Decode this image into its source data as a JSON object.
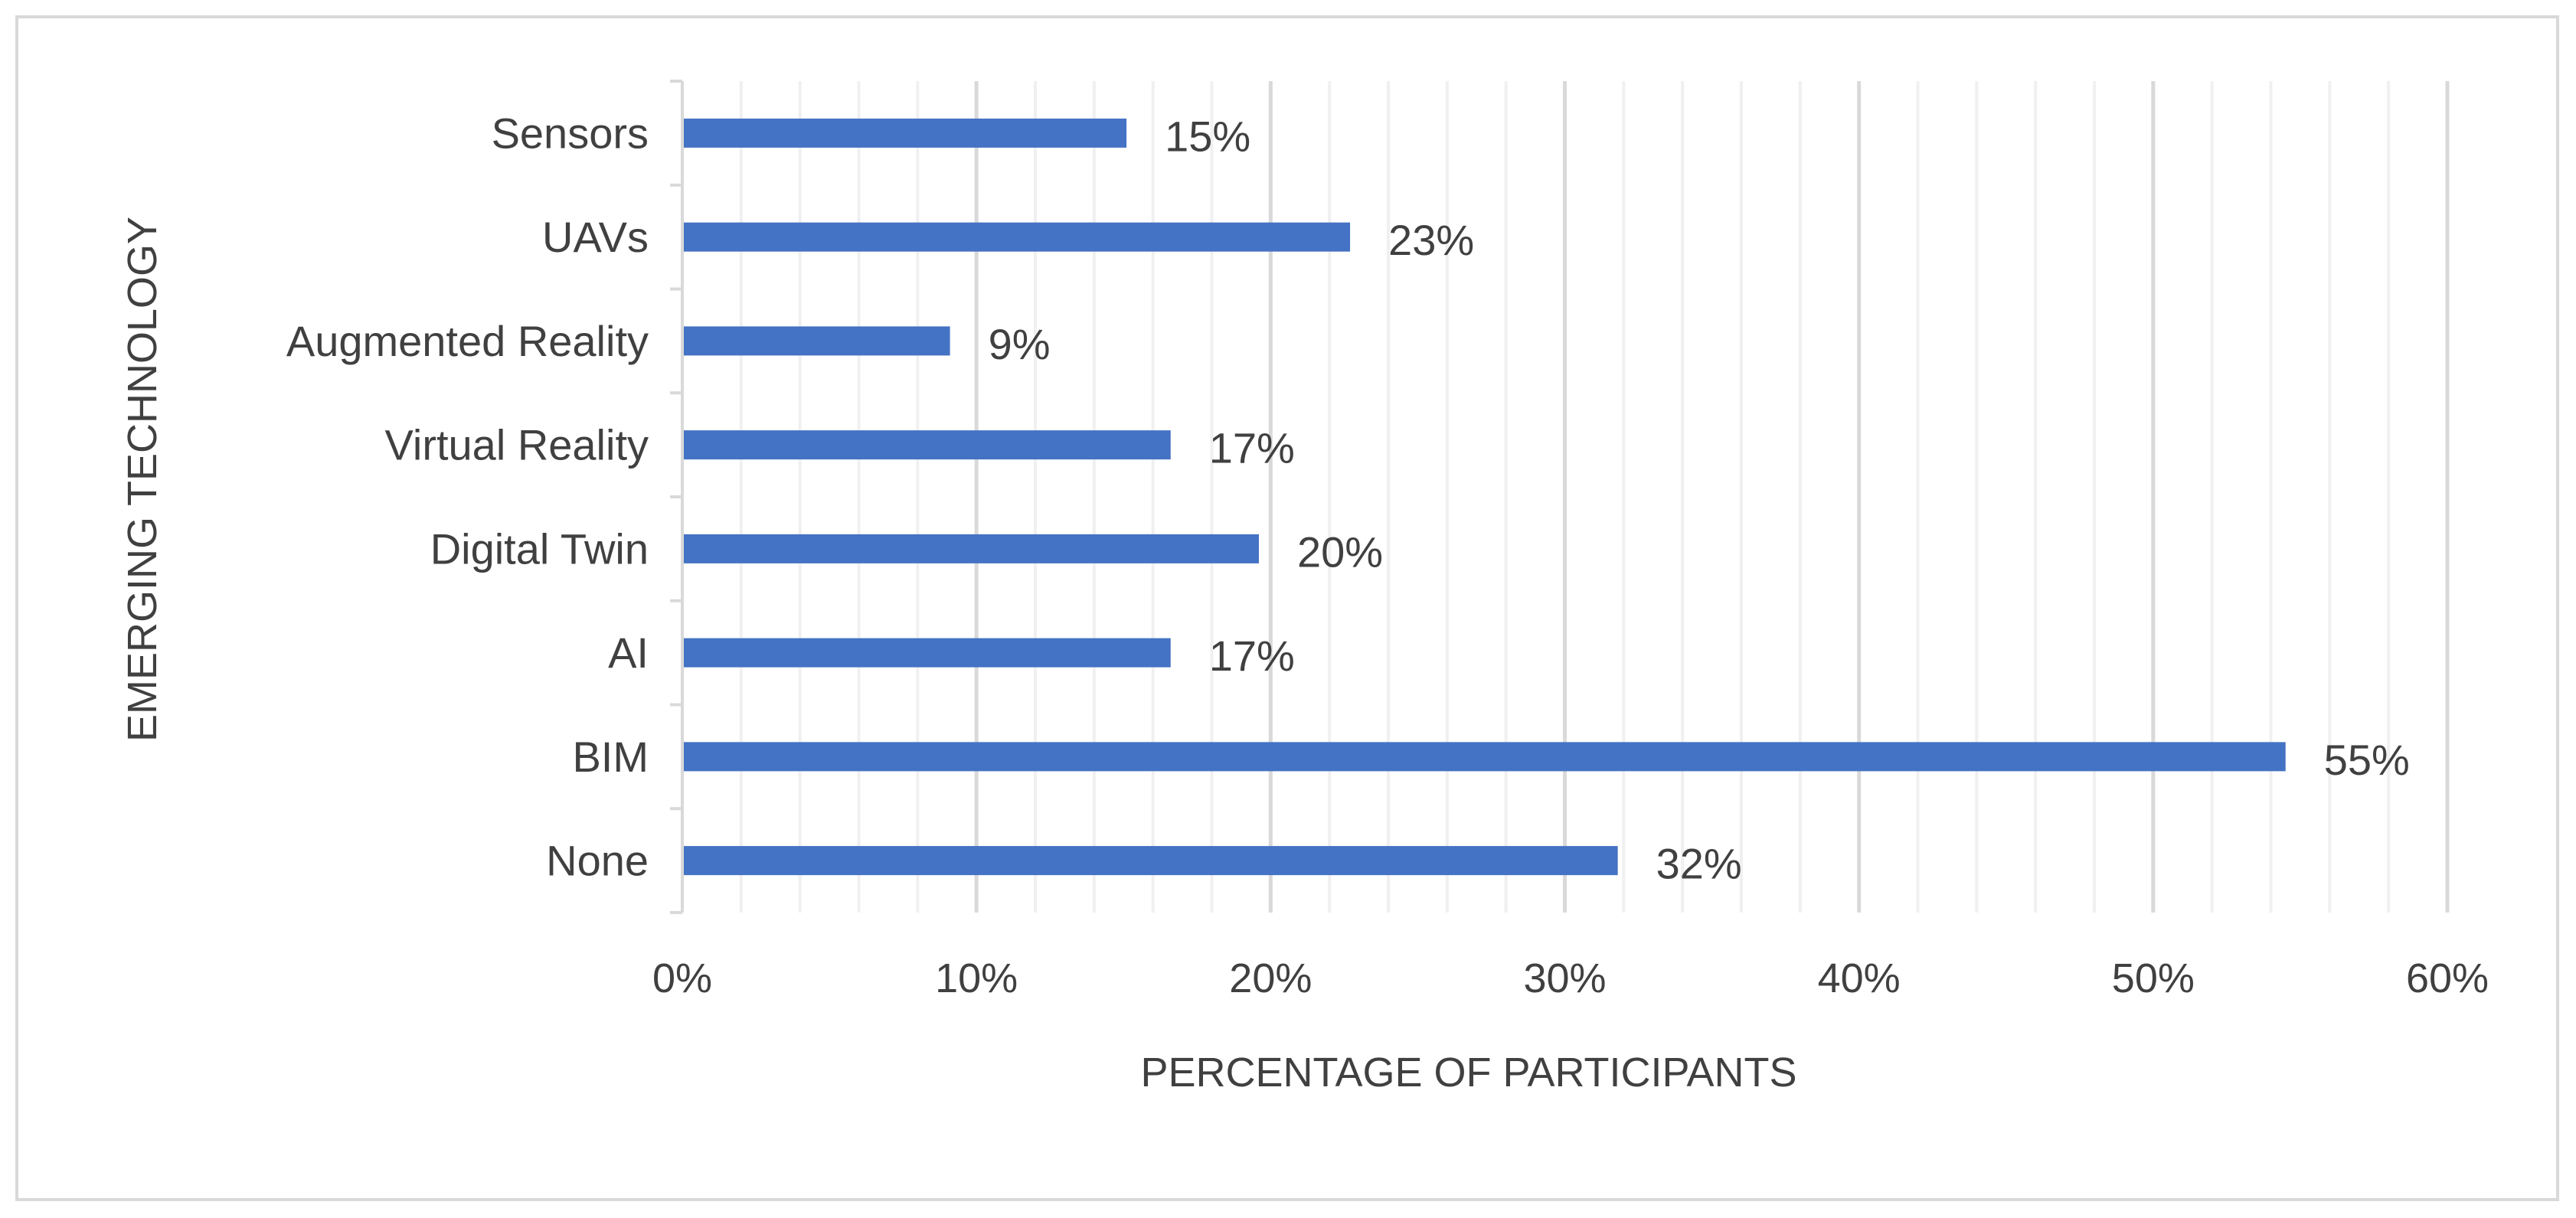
{
  "chart_data": {
    "type": "bar",
    "orientation": "horizontal",
    "title": "",
    "xlabel": "PERCENTAGE OF PARTICIPANTS",
    "ylabel": "EMERGING TECHNOLOGY",
    "categories": [
      "Sensors",
      "UAVs",
      "Augmented Reality",
      "Virtual Reality",
      "Digital Twin",
      "AI",
      "BIM",
      "None"
    ],
    "values": [
      15.1,
      22.7,
      9.1,
      16.6,
      19.6,
      16.6,
      54.5,
      31.8
    ],
    "data_labels": [
      "15%",
      "23%",
      "9%",
      "17%",
      "20%",
      "17%",
      "55%",
      "32%"
    ],
    "xlim": [
      0,
      60
    ],
    "x_ticks": [
      0,
      10,
      20,
      30,
      40,
      50,
      60
    ],
    "x_tick_labels": [
      "0%",
      "10%",
      "20%",
      "30%",
      "40%",
      "50%",
      "60%"
    ],
    "minor_grid_step": 2,
    "grid": true,
    "legend": "none",
    "bar_color": "#4472c4",
    "major_grid_color": "#d9d9d9",
    "minor_grid_color": "#f0f0f0",
    "axis_color": "#d9d9d9",
    "text_color": "#404040"
  }
}
